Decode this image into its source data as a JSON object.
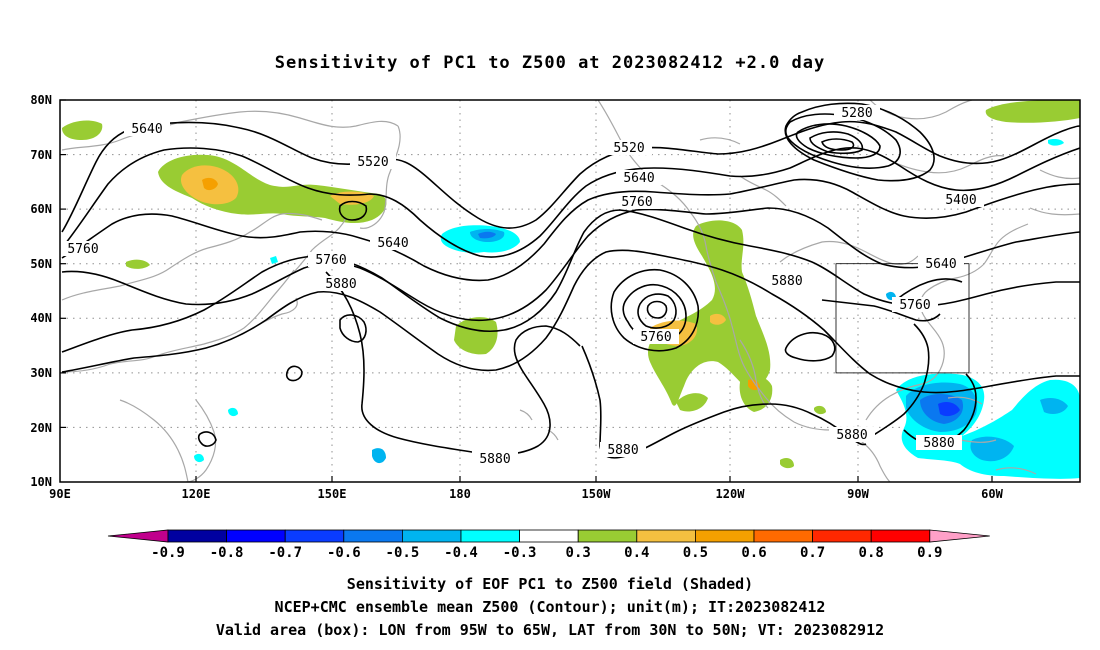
{
  "title": "Sensitivity of PC1 to Z500 at 2023082412 +2.0 day",
  "map": {
    "lon_range": [
      "90E",
      "30W"
    ],
    "lat_range": [
      "10N",
      "80N"
    ],
    "lat_ticks": [
      "80N",
      "70N",
      "60N",
      "50N",
      "40N",
      "30N",
      "20N",
      "10N"
    ],
    "lon_ticks": [
      "90E",
      "120E",
      "150E",
      "180",
      "150W",
      "120W",
      "90W",
      "60W"
    ],
    "grid": "dotted",
    "coastline_color": "#a8a8a8",
    "contour_color": "#000000",
    "contour_labels": [
      "5640",
      "5520",
      "5280",
      "5520",
      "5640",
      "5760",
      "5400",
      "5760",
      "5640",
      "5760",
      "5880",
      "5640",
      "5760",
      "5880",
      "5760",
      "5880",
      "5880",
      "5880",
      "5880"
    ],
    "valid_box": {
      "lon": [
        "95W",
        "65W"
      ],
      "lat": [
        "30N",
        "50N"
      ]
    }
  },
  "colorbar": {
    "labels": [
      "-0.9",
      "-0.8",
      "-0.7",
      "-0.6",
      "-0.5",
      "-0.4",
      "-0.3",
      "0.3",
      "0.4",
      "0.5",
      "0.6",
      "0.7",
      "0.8",
      "0.9"
    ],
    "colors": [
      "#c0008c",
      "#0000a0",
      "#0000ff",
      "#0a3cff",
      "#0a78f0",
      "#00b4f0",
      "#00ffff",
      "#ffffff",
      "#99cc33",
      "#f5c040",
      "#f5a000",
      "#ff6a00",
      "#ff2800",
      "#ff0000",
      "#ffa0c8"
    ]
  },
  "footer": {
    "line1": "Sensitivity of EOF PC1 to Z500 field (Shaded)",
    "line2": "NCEP+CMC ensemble mean Z500 (Contour); unit(m); IT:2023082412",
    "line3": "Valid area (box): LON from 95W to 65W, LAT from 30N to 50N; VT: 2023082912"
  }
}
